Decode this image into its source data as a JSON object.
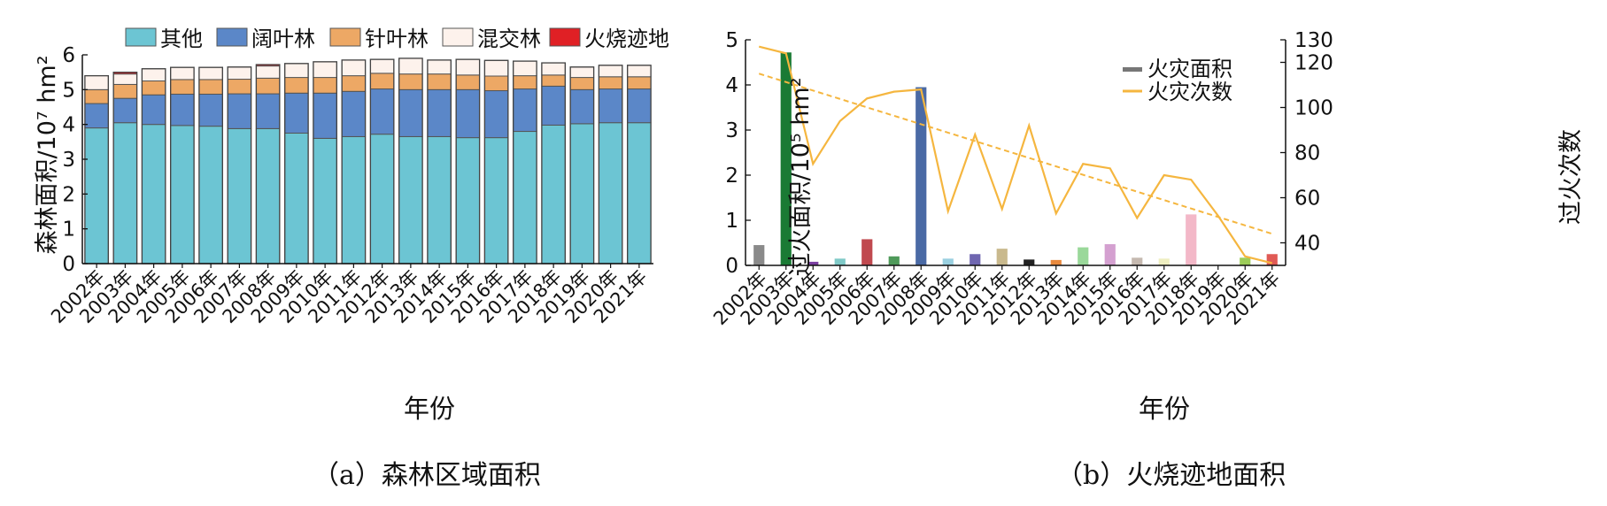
{
  "chart_data": [
    {
      "type": "bar",
      "stacked": true,
      "caption": "（a）森林区域面积",
      "xlabel": "年份",
      "ylabel": "森林面积/10⁷ hm²",
      "ylim": [
        0,
        6
      ],
      "yticks": [
        "0",
        "1",
        "2",
        "3",
        "4",
        "5",
        "6"
      ],
      "categories": [
        "2002年",
        "2003年",
        "2004年",
        "2005年",
        "2006年",
        "2007年",
        "2008年",
        "2009年",
        "2010年",
        "2011年",
        "2012年",
        "2013年",
        "2014年",
        "2015年",
        "2016年",
        "2017年",
        "2018年",
        "2019年",
        "2020年",
        "2021年"
      ],
      "legend_position": "top",
      "series": [
        {
          "name": "其他",
          "color": "#6cc5d3",
          "values": [
            3.9,
            4.05,
            4.0,
            3.97,
            3.95,
            3.88,
            3.88,
            3.75,
            3.6,
            3.65,
            3.72,
            3.65,
            3.65,
            3.62,
            3.62,
            3.8,
            3.98,
            4.02,
            4.05,
            4.05
          ]
        },
        {
          "name": "阔叶林",
          "color": "#5b87c8",
          "values": [
            0.7,
            0.7,
            0.85,
            0.9,
            0.92,
            1.0,
            1.0,
            1.15,
            1.3,
            1.3,
            1.3,
            1.35,
            1.35,
            1.38,
            1.35,
            1.22,
            1.12,
            0.98,
            0.97,
            0.97
          ]
        },
        {
          "name": "针叶林",
          "color": "#eda865",
          "values": [
            0.4,
            0.4,
            0.4,
            0.42,
            0.42,
            0.42,
            0.45,
            0.45,
            0.45,
            0.45,
            0.45,
            0.45,
            0.45,
            0.42,
            0.42,
            0.38,
            0.32,
            0.35,
            0.35,
            0.35
          ]
        },
        {
          "name": "混交林",
          "color": "#fdf2ec",
          "values": [
            0.4,
            0.3,
            0.35,
            0.35,
            0.35,
            0.35,
            0.35,
            0.4,
            0.45,
            0.45,
            0.4,
            0.45,
            0.4,
            0.45,
            0.45,
            0.42,
            0.35,
            0.3,
            0.33,
            0.33
          ]
        },
        {
          "name": "火烧迹地",
          "color": "#e02025",
          "values": [
            0,
            0.05,
            0,
            0,
            0,
            0,
            0.04,
            0,
            0,
            0,
            0,
            0,
            0,
            0,
            0,
            0,
            0,
            0,
            0,
            0
          ]
        }
      ]
    },
    {
      "type": "bar+line",
      "caption": "（b）火烧迹地面积",
      "xlabel": "年份",
      "ylabel_left": "过火面积/10⁵ hm²",
      "ylabel_right": "过火次数",
      "ylim_left": [
        0,
        5
      ],
      "ylim_right": [
        30,
        130
      ],
      "yticks_left": [
        "0",
        "1",
        "2",
        "3",
        "4",
        "5"
      ],
      "yticks_right": [
        "40",
        "60",
        "80",
        "100",
        "120",
        "130"
      ],
      "categories": [
        "2002年",
        "2003年",
        "2004年",
        "2005年",
        "2006年",
        "2007年",
        "2008年",
        "2009年",
        "2010年",
        "2011年",
        "2012年",
        "2013年",
        "2014年",
        "2015年",
        "2016年",
        "2017年",
        "2018年",
        "2019年",
        "2020年",
        "2021年"
      ],
      "legend_position": "top-right",
      "bar_series": {
        "name": "火灾面积",
        "legend_color": "#777777",
        "values": [
          0.45,
          4.72,
          0.08,
          0.15,
          0.58,
          0.2,
          3.95,
          0.15,
          0.25,
          0.37,
          0.13,
          0.12,
          0.4,
          0.47,
          0.17,
          0.15,
          1.13,
          0,
          0.17,
          0.25
        ],
        "colors": [
          "#8a8a8a",
          "#1a7a34",
          "#7b3fa0",
          "#7fc9c7",
          "#c0494f",
          "#4f9a5a",
          "#4a6aa5",
          "#9ad0e0",
          "#6f66b0",
          "#c9b98d",
          "#222222",
          "#e8893d",
          "#9ad89a",
          "#d4a0d0",
          "#c5b9b0",
          "#eeeec0",
          "#f3b8c8",
          "#dddddd",
          "#9ccc58",
          "#e05a55"
        ]
      },
      "line_series": {
        "name": "火灾次数",
        "color": "#f5b63f",
        "values": [
          127,
          124,
          75,
          94,
          104,
          107,
          108,
          54,
          88,
          55,
          92,
          53,
          75,
          73,
          51,
          70,
          68,
          52,
          34,
          31
        ]
      },
      "trend_line": {
        "color": "#f5b63f",
        "style": "dashed",
        "values": [
          115,
          44
        ]
      }
    }
  ]
}
